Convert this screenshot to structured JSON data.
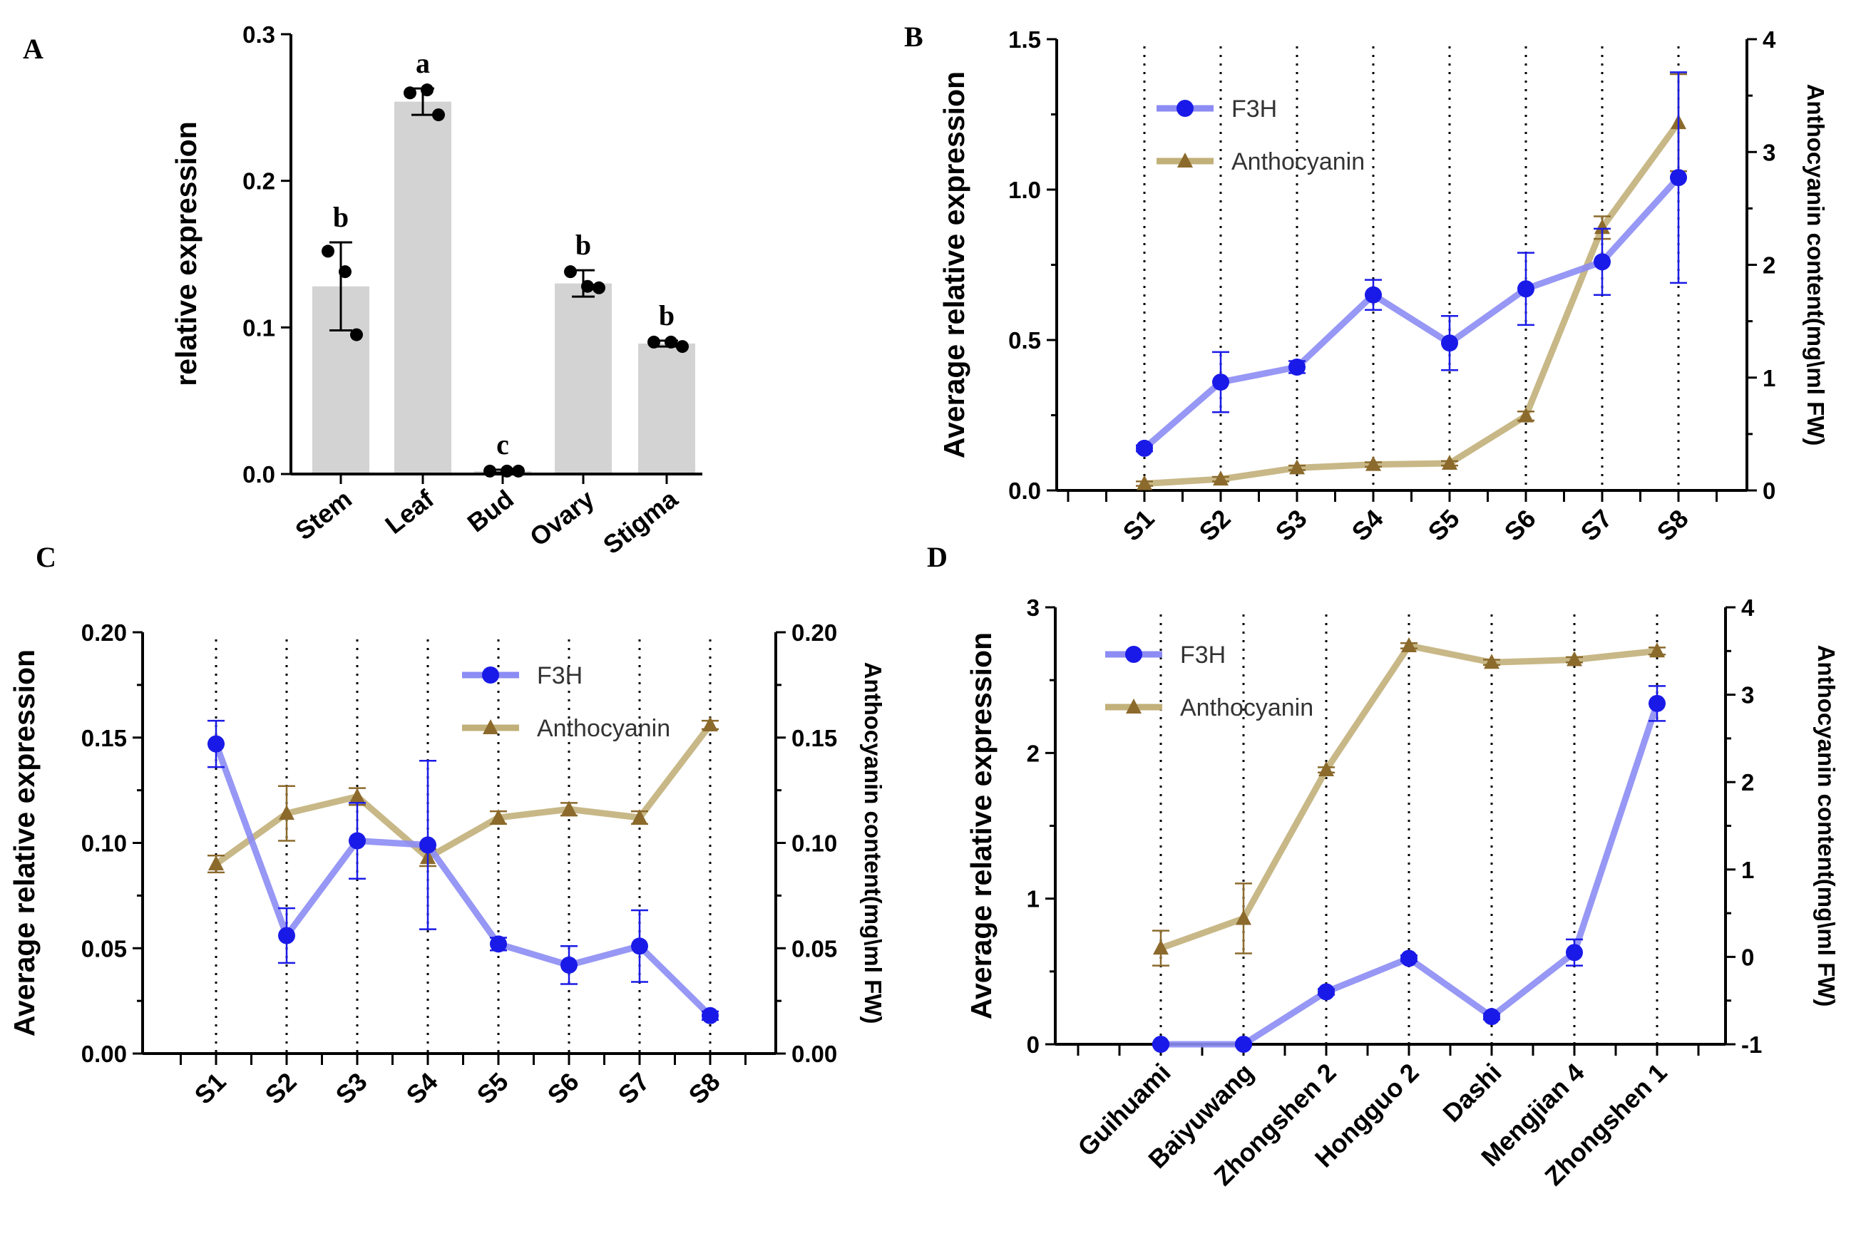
{
  "colors": {
    "f3h": "#8c8cf4",
    "f3h_marker": "#1a1ae8",
    "anthocyanin": "#c2b07a",
    "anthocyanin_marker": "#8b6a2c",
    "bar": "#d3d3d3",
    "axis": "#000000"
  },
  "chart_data": [
    {
      "panel": "A",
      "type": "bar",
      "ylabel": "relative expression",
      "ylim": [
        0,
        0.3
      ],
      "yticks": [
        "0.0",
        "0.1",
        "0.2",
        "0.3"
      ],
      "categories": [
        "Stem",
        "Leaf",
        "Bud",
        "Ovary",
        "Stigma"
      ],
      "values": [
        0.128,
        0.254,
        0.002,
        0.13,
        0.089
      ],
      "errors": [
        0.03,
        0.009,
        0.001,
        0.009,
        0.002
      ],
      "replicates": [
        [
          0.152,
          0.138,
          0.095
        ],
        [
          0.26,
          0.262,
          0.245
        ],
        [
          0.002,
          0.002,
          0.002
        ],
        [
          0.138,
          0.128,
          0.127
        ],
        [
          0.09,
          0.09,
          0.087
        ]
      ],
      "letters": [
        "b",
        "a",
        "c",
        "b",
        "b"
      ]
    },
    {
      "panel": "B",
      "type": "line",
      "ylabel": "Average relative expression",
      "y2label": "Anthocyanin content(mg\\ml FW)",
      "ylim": [
        0,
        1.5
      ],
      "y2lim": [
        0,
        4
      ],
      "yticks": [
        "0.0",
        "0.5",
        "1.0",
        "1.5"
      ],
      "y2ticks": [
        "0",
        "1",
        "2",
        "3",
        "4"
      ],
      "categories": [
        "S1",
        "S2",
        "S3",
        "S4",
        "S5",
        "S6",
        "S7",
        "S8"
      ],
      "legend": [
        "F3H",
        "Anthocyanin"
      ],
      "series": [
        {
          "name": "F3H",
          "axis": "left",
          "values": [
            0.14,
            0.36,
            0.41,
            0.65,
            0.49,
            0.67,
            0.76,
            1.04
          ],
          "errors": [
            0.01,
            0.1,
            0.02,
            0.05,
            0.09,
            0.12,
            0.11,
            0.35
          ]
        },
        {
          "name": "Anthocyanin",
          "axis": "right",
          "values": [
            0.06,
            0.1,
            0.2,
            0.23,
            0.24,
            0.66,
            2.33,
            3.26
          ],
          "errors": [
            0.02,
            0.02,
            0.02,
            0.02,
            0.02,
            0.04,
            0.1,
            0.43
          ]
        }
      ]
    },
    {
      "panel": "C",
      "type": "line",
      "ylabel": "Average relative expression",
      "y2label": "Anthocyanin content(mg\\ml FW)",
      "ylim": [
        0,
        0.2
      ],
      "y2lim": [
        0,
        0.2
      ],
      "yticks": [
        "0.00",
        "0.05",
        "0.10",
        "0.15",
        "0.20"
      ],
      "y2ticks": [
        "0.00",
        "0.05",
        "0.10",
        "0.15",
        "0.20"
      ],
      "categories": [
        "S1",
        "S2",
        "S3",
        "S4",
        "S5",
        "S6",
        "S7",
        "S8"
      ],
      "legend": [
        "F3H",
        "Anthocyanin"
      ],
      "series": [
        {
          "name": "F3H",
          "axis": "left",
          "values": [
            0.147,
            0.056,
            0.101,
            0.099,
            0.052,
            0.042,
            0.051,
            0.018
          ],
          "errors": [
            0.011,
            0.013,
            0.018,
            0.04,
            0.003,
            0.009,
            0.017,
            0.002
          ]
        },
        {
          "name": "Anthocyanin",
          "axis": "right",
          "values": [
            0.09,
            0.114,
            0.122,
            0.093,
            0.112,
            0.116,
            0.112,
            0.156
          ],
          "errors": [
            0.004,
            0.013,
            0.004,
            0.004,
            0.003,
            0.003,
            0.003,
            0.002
          ]
        }
      ]
    },
    {
      "panel": "D",
      "type": "line",
      "ylabel": "Average relative expression",
      "y2label": "Anthocyanin content(mg\\ml FW)",
      "ylim": [
        0,
        3
      ],
      "y2lim": [
        -1,
        4
      ],
      "yticks": [
        "0",
        "1",
        "2",
        "3"
      ],
      "y2ticks": [
        "-1",
        "0",
        "1",
        "2",
        "3",
        "4"
      ],
      "categories": [
        "Guihuami",
        "Baiyuwang",
        "Zhongshen 2",
        "Hongguo 2",
        "Dashi",
        "Mengjian 4",
        "Zhongshen 1"
      ],
      "legend": [
        "F3H",
        "Anthocyanin"
      ],
      "series": [
        {
          "name": "F3H",
          "axis": "left",
          "values": [
            0.0,
            0.0,
            0.36,
            0.59,
            0.19,
            0.63,
            2.34
          ],
          "errors": [
            0.01,
            0.01,
            0.02,
            0.02,
            0.02,
            0.09,
            0.12
          ]
        },
        {
          "name": "Anthocyanin",
          "axis": "right",
          "values": [
            0.1,
            0.44,
            2.14,
            3.56,
            3.37,
            3.4,
            3.5
          ],
          "errors": [
            0.2,
            0.4,
            0.03,
            0.03,
            0.03,
            0.03,
            0.04
          ]
        }
      ]
    }
  ]
}
